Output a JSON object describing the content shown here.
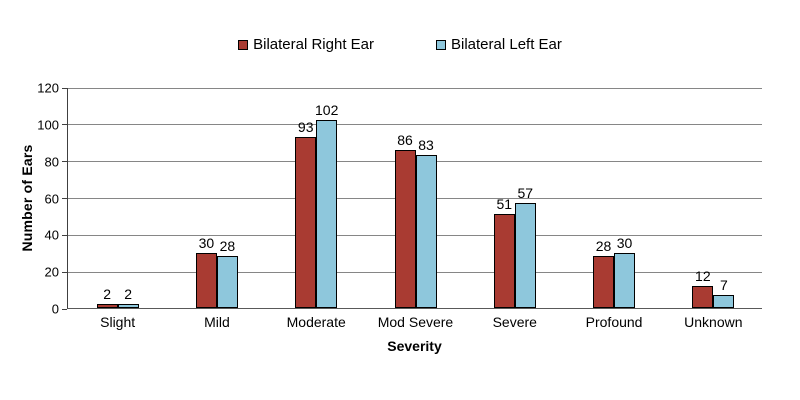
{
  "chart_data": {
    "type": "bar",
    "title": "",
    "categories": [
      "Slight",
      "Mild",
      "Moderate",
      "Mod Severe",
      "Severe",
      "Profound",
      "Unknown"
    ],
    "series": [
      {
        "name": "Bilateral Right Ear",
        "color": "#A93B32",
        "values": [
          2,
          30,
          93,
          86,
          51,
          28,
          12
        ]
      },
      {
        "name": "Bilateral Left Ear",
        "color": "#8EC7DC",
        "values": [
          2,
          28,
          102,
          83,
          57,
          30,
          7
        ]
      }
    ],
    "xlabel": "Severity",
    "ylabel": "Number of Ears",
    "ylim": [
      0,
      120
    ],
    "ytick_step": 20,
    "grid": true,
    "legend_position": "top",
    "data_labels": true
  },
  "colors": {
    "background": "#FFFFFF",
    "gridline": "#868686",
    "axis": "#404040",
    "bar_border": "#000000",
    "text": "#000000"
  }
}
